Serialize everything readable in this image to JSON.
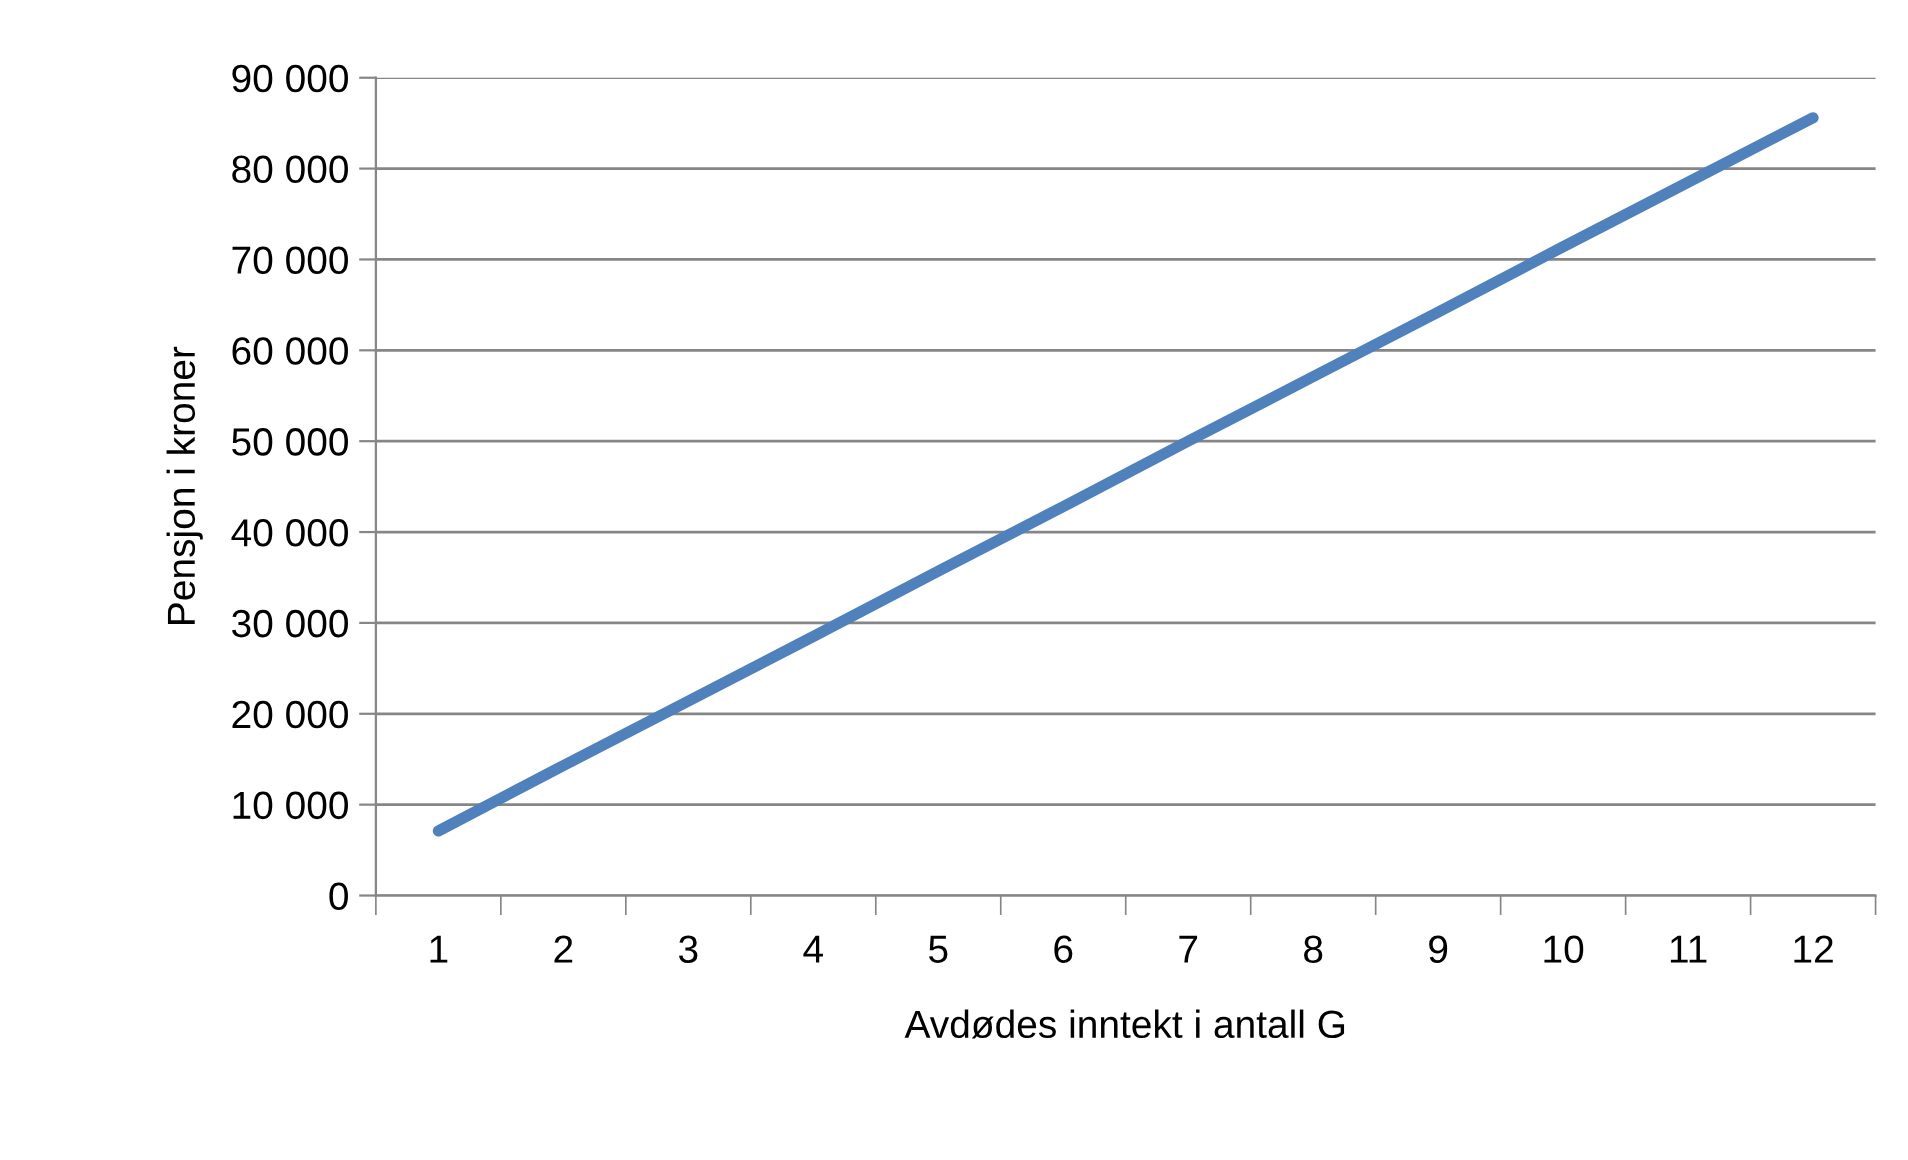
{
  "chart_data": {
    "type": "line",
    "xlabel": "Avdødes inntekt i antall G",
    "ylabel": "Pensjon i kroner",
    "categories": [
      "1",
      "2",
      "3",
      "4",
      "5",
      "6",
      "7",
      "8",
      "9",
      "10",
      "11",
      "12"
    ],
    "series": [
      {
        "color": "#4f81bd",
        "values": [
          7100,
          14300,
          21400,
          28500,
          35700,
          42800,
          50000,
          57100,
          64200,
          71400,
          78500,
          85600
        ]
      }
    ],
    "ylim": [
      0,
      90000
    ],
    "yticks": [
      0,
      {
        "value": 10000,
        "label": "10 000"
      },
      {
        "value": 20000,
        "label": "20 000"
      },
      {
        "value": 30000,
        "label": "30 000"
      },
      {
        "value": 40000,
        "label": "40 000"
      },
      {
        "value": 50000,
        "label": "50 000"
      },
      {
        "value": 60000,
        "label": "60 000"
      },
      {
        "value": 70000,
        "label": "70 000"
      },
      {
        "value": 80000,
        "label": "80 000"
      },
      {
        "value": 90000,
        "label": "90 000"
      }
    ],
    "grid": "y",
    "legend": false,
    "marker": "none",
    "line_style": "solid"
  }
}
